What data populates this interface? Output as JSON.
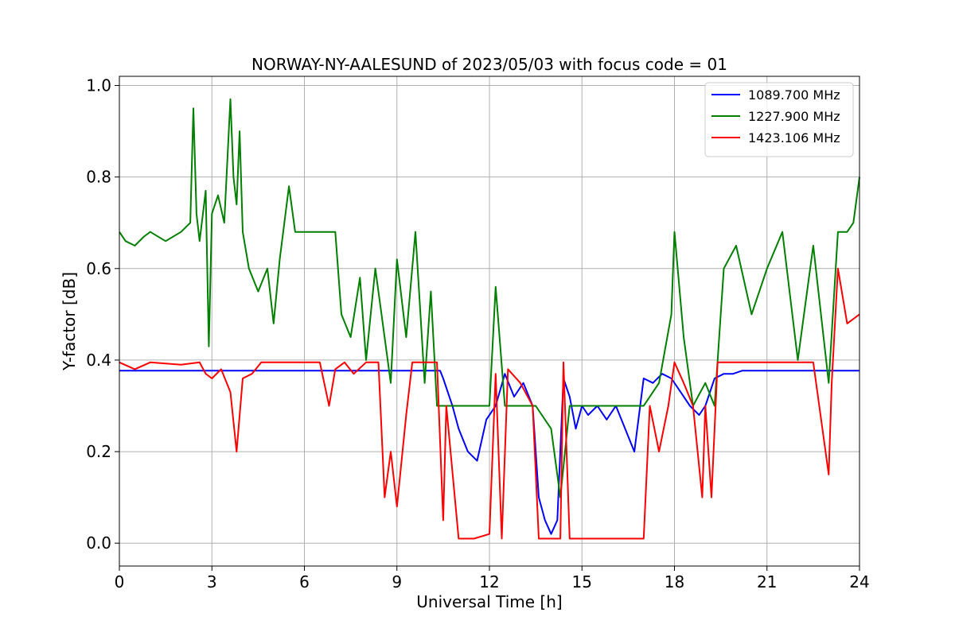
{
  "chart_data": {
    "type": "line",
    "title": "NORWAY-NY-AALESUND of 2023/05/03 with focus code = 01",
    "xlabel": "Universal Time [h]",
    "ylabel": "Y-factor [dB]",
    "xlim": [
      0,
      24
    ],
    "ylim": [
      -0.05,
      1.02
    ],
    "xticks": [
      0,
      3,
      6,
      9,
      12,
      15,
      18,
      21,
      24
    ],
    "xtick_labels": [
      "0",
      "3",
      "6",
      "9",
      "12",
      "15",
      "18",
      "21",
      "24"
    ],
    "yticks": [
      0.0,
      0.2,
      0.4,
      0.6,
      0.8,
      1.0
    ],
    "ytick_labels": [
      "0.0",
      "0.2",
      "0.4",
      "0.6",
      "0.8",
      "1.0"
    ],
    "grid": true,
    "legend_position": "top-right",
    "series": [
      {
        "name": "1089.700 MHz",
        "color": "#0000ff",
        "x": [
          0,
          10.4,
          10.5,
          10.8,
          11.0,
          11.3,
          11.6,
          11.9,
          12.2,
          12.5,
          12.8,
          13.1,
          13.4,
          13.6,
          13.8,
          14.0,
          14.2,
          14.4,
          14.6,
          14.8,
          15.0,
          15.2,
          15.5,
          15.8,
          16.1,
          16.4,
          16.7,
          17.0,
          17.3,
          17.6,
          17.9,
          18.2,
          18.5,
          18.8,
          19.0,
          19.3,
          19.6,
          19.9,
          20.2,
          24.0
        ],
        "y": [
          0.377,
          0.377,
          0.36,
          0.3,
          0.25,
          0.2,
          0.18,
          0.27,
          0.3,
          0.37,
          0.32,
          0.35,
          0.3,
          0.1,
          0.05,
          0.02,
          0.05,
          0.36,
          0.32,
          0.25,
          0.3,
          0.28,
          0.3,
          0.27,
          0.3,
          0.25,
          0.2,
          0.36,
          0.35,
          0.37,
          0.36,
          0.33,
          0.3,
          0.28,
          0.3,
          0.36,
          0.37,
          0.37,
          0.377,
          0.377
        ]
      },
      {
        "name": "1227.900 MHz",
        "color": "#008000",
        "x": [
          0,
          0.2,
          0.5,
          0.8,
          1.0,
          1.5,
          2.0,
          2.3,
          2.4,
          2.5,
          2.6,
          2.8,
          2.9,
          3.0,
          3.2,
          3.4,
          3.6,
          3.7,
          3.8,
          3.9,
          4.0,
          4.2,
          4.5,
          4.8,
          5.0,
          5.2,
          5.5,
          5.7,
          6.0,
          6.5,
          7.0,
          7.2,
          7.5,
          7.8,
          8.0,
          8.3,
          8.5,
          8.8,
          9.0,
          9.3,
          9.6,
          9.9,
          10.1,
          10.3,
          10.6,
          11.0,
          11.5,
          12.0,
          12.2,
          12.5,
          13.0,
          13.5,
          14.0,
          14.3,
          14.6,
          15.0,
          15.5,
          16.0,
          16.5,
          17.0,
          17.5,
          17.9,
          18.0,
          18.3,
          18.6,
          19.0,
          19.3,
          19.6,
          20.0,
          20.5,
          21.0,
          21.5,
          22.0,
          22.5,
          23.0,
          23.3,
          23.6,
          23.8,
          24.0
        ],
        "y": [
          0.68,
          0.66,
          0.65,
          0.67,
          0.68,
          0.66,
          0.68,
          0.7,
          0.95,
          0.72,
          0.66,
          0.77,
          0.43,
          0.72,
          0.76,
          0.7,
          0.97,
          0.8,
          0.74,
          0.9,
          0.68,
          0.6,
          0.55,
          0.6,
          0.48,
          0.62,
          0.78,
          0.68,
          0.68,
          0.68,
          0.68,
          0.5,
          0.45,
          0.58,
          0.4,
          0.6,
          0.5,
          0.35,
          0.62,
          0.45,
          0.68,
          0.35,
          0.55,
          0.3,
          0.3,
          0.3,
          0.3,
          0.3,
          0.56,
          0.3,
          0.3,
          0.3,
          0.25,
          0.1,
          0.3,
          0.3,
          0.3,
          0.3,
          0.3,
          0.3,
          0.35,
          0.5,
          0.68,
          0.45,
          0.3,
          0.35,
          0.3,
          0.6,
          0.65,
          0.5,
          0.6,
          0.68,
          0.4,
          0.65,
          0.35,
          0.68,
          0.68,
          0.7,
          0.8
        ]
      },
      {
        "name": "1423.106 MHz",
        "color": "#ff0000",
        "x": [
          0,
          0.5,
          1.0,
          2.0,
          2.6,
          2.8,
          3.0,
          3.3,
          3.6,
          3.8,
          4.0,
          4.3,
          4.6,
          5.0,
          6.0,
          6.5,
          6.8,
          7.0,
          7.3,
          7.6,
          8.0,
          8.4,
          8.6,
          8.8,
          9.0,
          9.3,
          9.5,
          10.0,
          10.3,
          10.5,
          10.6,
          11.0,
          11.5,
          12.0,
          12.2,
          12.4,
          12.6,
          13.0,
          13.4,
          13.6,
          14.0,
          14.3,
          14.4,
          14.6,
          15.0,
          15.5,
          16.0,
          16.5,
          17.0,
          17.2,
          17.5,
          17.8,
          18.0,
          18.3,
          18.6,
          18.9,
          19.0,
          19.2,
          19.4,
          20.0,
          21.0,
          22.0,
          22.5,
          23.0,
          23.1,
          23.3,
          23.6,
          24.0
        ],
        "y": [
          0.395,
          0.38,
          0.395,
          0.39,
          0.395,
          0.37,
          0.36,
          0.38,
          0.33,
          0.2,
          0.36,
          0.37,
          0.395,
          0.395,
          0.395,
          0.395,
          0.3,
          0.38,
          0.395,
          0.37,
          0.395,
          0.395,
          0.1,
          0.2,
          0.08,
          0.28,
          0.395,
          0.395,
          0.395,
          0.05,
          0.3,
          0.01,
          0.01,
          0.02,
          0.37,
          0.01,
          0.38,
          0.35,
          0.3,
          0.01,
          0.01,
          0.01,
          0.395,
          0.01,
          0.01,
          0.01,
          0.01,
          0.01,
          0.01,
          0.3,
          0.2,
          0.3,
          0.395,
          0.35,
          0.3,
          0.1,
          0.3,
          0.1,
          0.395,
          0.395,
          0.395,
          0.395,
          0.395,
          0.15,
          0.35,
          0.6,
          0.48,
          0.5
        ]
      }
    ]
  }
}
